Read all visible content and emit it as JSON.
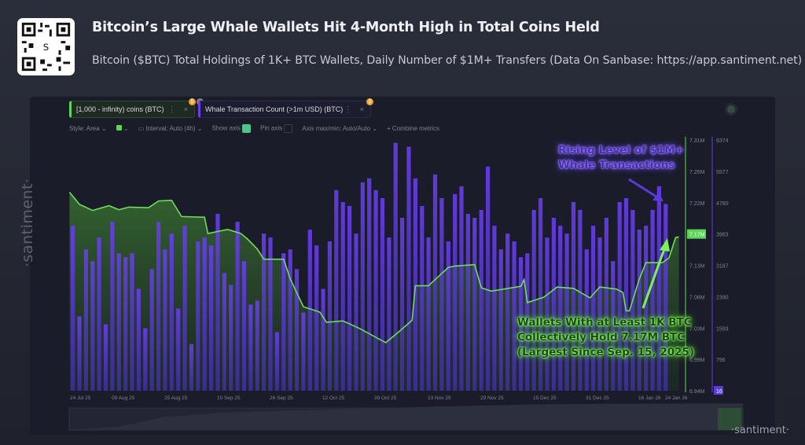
{
  "header": {
    "title": "Bitcoin’s Large Whale Wallets Hit 4-Month High in Total Coins Held",
    "subtitle": "Bitcoin ($BTC) Total Holdings of 1K+ BTC Wallets, Daily Number of $1M+ Transfers (Data On Sanbase: https://app.santiment.net)",
    "qr_logo_text": "S"
  },
  "metrics": [
    {
      "label": "[1,000 - infinity) coins (BTC)",
      "color": "#5fd35a"
    },
    {
      "label": "Whale Transaction Count (>1m USD) (BTC)",
      "color": "#6a40e8"
    }
  ],
  "toolbar": {
    "style": "Style: Area",
    "interval": "Interval: Auto (4h)",
    "show_axis": "Show axis",
    "pin_axis": "Pin axis",
    "axis_maxmin": "Axis max/min: Auto/Auto",
    "combine": "+ Combine metrics"
  },
  "watermark": "·santiment·",
  "annotations": {
    "purple": [
      "Rising Level of $1M+",
      "Whale Transactions"
    ],
    "green": [
      "Wallets With at Least 1K BTC",
      "Collectively Hold 7.17M BTC",
      "(Largest Since Sep. 15, 2025)"
    ]
  },
  "chart_data": {
    "type": "bar+area",
    "x_ticks": [
      "24 Jul 25",
      "09 Aug 25",
      "25 Aug 25",
      "10 Sep 25",
      "26 Sep 25",
      "12 Oct 25",
      "28 Oct 25",
      "13 Nov 25",
      "29 Nov 25",
      "15 Dec 25",
      "31 Dec 25",
      "16 Jan 26",
      "24 Jan 26"
    ],
    "left_axis": {
      "ticks": [
        "7.31M",
        "7.26M",
        "7.22M",
        "7.17M",
        "7.13M",
        "7.08M",
        "7.03M",
        "6.99M",
        "6.94M"
      ],
      "range": [
        6.94,
        7.31
      ],
      "current_label": "7.17M",
      "color": "#5fd35a"
    },
    "right_axis": {
      "ticks": [
        "6374",
        "5577",
        "4780",
        "3983",
        "3187",
        "2390",
        "1593",
        "796",
        "16"
      ],
      "range": [
        16,
        6374
      ],
      "color": "#6a40e8"
    },
    "series": [
      {
        "name": "[1,000 - infinity) coins (BTC)",
        "kind": "area",
        "unit": "M BTC",
        "points": [
          [
            "2025-07-21",
            7.233
          ],
          [
            "2025-07-24",
            7.215
          ],
          [
            "2025-07-28",
            7.206
          ],
          [
            "2025-08-02",
            7.213
          ],
          [
            "2025-08-05",
            7.207
          ],
          [
            "2025-08-08",
            7.211
          ],
          [
            "2025-08-14",
            7.21
          ],
          [
            "2025-08-17",
            7.22
          ],
          [
            "2025-08-21",
            7.221
          ],
          [
            "2025-08-24",
            7.197
          ],
          [
            "2025-08-31",
            7.196
          ],
          [
            "2025-09-01",
            7.172
          ],
          [
            "2025-09-07",
            7.178
          ],
          [
            "2025-09-11",
            7.172
          ],
          [
            "2025-09-13",
            7.164
          ],
          [
            "2025-09-16",
            7.149
          ],
          [
            "2025-09-18",
            7.134
          ],
          [
            "2025-09-24",
            7.134
          ],
          [
            "2025-09-26",
            7.105
          ],
          [
            "2025-09-30",
            7.064
          ],
          [
            "2025-10-05",
            7.056
          ],
          [
            "2025-10-07",
            7.041
          ],
          [
            "2025-10-12",
            7.043
          ],
          [
            "2025-10-17",
            7.032
          ],
          [
            "2025-10-25",
            7.011
          ],
          [
            "2025-10-29",
            7.027
          ],
          [
            "2025-11-02",
            7.044
          ],
          [
            "2025-11-03",
            7.095
          ],
          [
            "2025-11-07",
            7.095
          ],
          [
            "2025-11-09",
            7.104
          ],
          [
            "2025-11-13",
            7.122
          ],
          [
            "2025-11-15",
            7.124
          ],
          [
            "2025-11-21",
            7.126
          ],
          [
            "2025-11-23",
            7.092
          ],
          [
            "2025-11-26",
            7.087
          ],
          [
            "2025-12-05",
            7.094
          ],
          [
            "2025-12-06",
            7.104
          ],
          [
            "2025-12-07",
            7.07
          ],
          [
            "2025-12-12",
            7.078
          ],
          [
            "2025-12-16",
            7.093
          ],
          [
            "2025-12-21",
            7.091
          ],
          [
            "2025-12-26",
            7.077
          ],
          [
            "2025-12-29",
            7.093
          ],
          [
            "2026-01-03",
            7.09
          ],
          [
            "2026-01-05",
            7.085
          ],
          [
            "2026-01-06",
            7.058
          ],
          [
            "2026-01-07",
            7.058
          ],
          [
            "2026-01-10",
            7.105
          ],
          [
            "2026-01-12",
            7.129
          ],
          [
            "2026-01-17",
            7.129
          ],
          [
            "2026-01-19",
            7.136
          ],
          [
            "2026-01-21",
            7.166
          ],
          [
            "2026-01-22",
            7.167
          ]
        ]
      },
      {
        "name": "Whale Transaction Count (>1m USD) (BTC)",
        "kind": "bar",
        "start": "2025-07-22",
        "step_days": 2,
        "values": [
          4200,
          1900,
          3600,
          3300,
          3900,
          1700,
          4300,
          3500,
          3400,
          3500,
          2600,
          1600,
          3100,
          4300,
          3600,
          4000,
          2100,
          4200,
          1200,
          3800,
          3900,
          3700,
          4500,
          3000,
          2700,
          4300,
          3300,
          2200,
          2300,
          4000,
          3900,
          1500,
          3500,
          3600,
          3100,
          2000,
          4100,
          3700,
          2600,
          3800,
          5100,
          4800,
          4700,
          4000,
          5300,
          5400,
          5100,
          4900,
          3900,
          6300,
          4400,
          6200,
          5400,
          4700,
          3900,
          5500,
          4900,
          3800,
          5000,
          5200,
          4500,
          4400,
          4600,
          5700,
          4200,
          3600,
          4000,
          3800,
          3400,
          3500,
          4600,
          4900,
          3900,
          4400,
          4200,
          4000,
          4800,
          4600,
          3600,
          4200,
          3900,
          4400,
          3300,
          4800,
          4900,
          4600,
          4100,
          4200,
          4600,
          5200,
          4750
        ]
      }
    ],
    "grid": false,
    "legend": "top-left"
  }
}
